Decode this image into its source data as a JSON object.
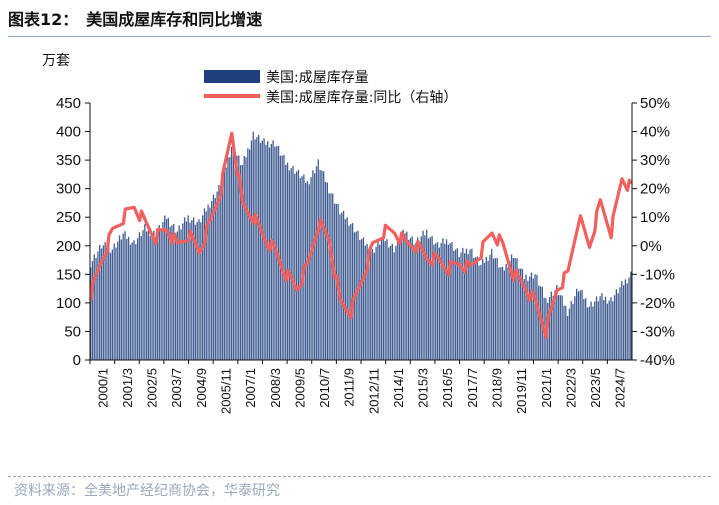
{
  "header": {
    "title": "图表12：　美国成屋库存和同比增速",
    "unit": "万套"
  },
  "footer": {
    "source": "资料来源：全美地产经纪商协会，华泰研究"
  },
  "colors": {
    "bar": "#1f3f7f",
    "line": "#f25f5c",
    "axis": "#111111"
  },
  "chart_data": {
    "type": "bar",
    "legend_position": "top-center",
    "grid": false,
    "series": [
      {
        "name": "美国:成屋库存量",
        "type": "bar",
        "axis": "left",
        "color": "#1f3f7f",
        "x": [
          "2000/1",
          "2000/7",
          "2001/1",
          "2001/7",
          "2002/1",
          "2002/7",
          "2003/1",
          "2003/7",
          "2004/1",
          "2004/7",
          "2005/1",
          "2005/7",
          "2006/1",
          "2006/7",
          "2007/1",
          "2007/7",
          "2008/1",
          "2008/7",
          "2009/1",
          "2009/7",
          "2010/1",
          "2010/7",
          "2011/1",
          "2011/7",
          "2012/1",
          "2012/7",
          "2013/1",
          "2013/7",
          "2014/1",
          "2014/7",
          "2015/1",
          "2015/7",
          "2016/1",
          "2016/7",
          "2017/1",
          "2017/7",
          "2018/1",
          "2018/7",
          "2019/1",
          "2019/7",
          "2020/1",
          "2020/7",
          "2021/1",
          "2021/7",
          "2022/1",
          "2022/7",
          "2023/1",
          "2023/7",
          "2024/1",
          "2024/7",
          "2024/12"
        ],
        "values": [
          170,
          200,
          195,
          220,
          205,
          230,
          220,
          250,
          225,
          250,
          240,
          275,
          305,
          375,
          340,
          395,
          380,
          380,
          345,
          330,
          310,
          345,
          300,
          260,
          240,
          210,
          190,
          215,
          195,
          225,
          205,
          225,
          200,
          210,
          185,
          195,
          165,
          190,
          155,
          185,
          145,
          150,
          105,
          125,
          85,
          125,
          95,
          110,
          105,
          130,
          150
        ]
      },
      {
        "name": "美国:成屋库存量:同比（右轴）",
        "type": "line",
        "axis": "right",
        "color": "#f25f5c",
        "x": [
          "2000/1",
          "2000/7",
          "2001/1",
          "2001/7",
          "2002/1",
          "2002/7",
          "2003/1",
          "2003/7",
          "2004/1",
          "2004/7",
          "2005/1",
          "2005/7",
          "2006/1",
          "2006/7",
          "2007/1",
          "2007/7",
          "2008/1",
          "2008/7",
          "2009/1",
          "2009/7",
          "2010/1",
          "2010/7",
          "2011/1",
          "2011/7",
          "2012/1",
          "2012/7",
          "2013/1",
          "2013/7",
          "2014/1",
          "2014/7",
          "2015/1",
          "2015/7",
          "2016/1",
          "2016/7",
          "2017/1",
          "2017/7",
          "2018/1",
          "2018/7",
          "2019/1",
          "2019/7",
          "2020/1",
          "2020/7",
          "2021/1",
          "2021/7",
          "2022/1",
          "2022/7",
          "2023/1",
          "2023/7",
          "2024/1",
          "2024/7",
          "2024/12"
        ],
        "values": [
          -17,
          -5,
          5,
          10,
          14,
          8,
          3,
          6,
          0,
          4,
          -2,
          8,
          20,
          40,
          14,
          10,
          3,
          -2,
          -10,
          -15,
          -7,
          8,
          2,
          -20,
          -23,
          -12,
          0,
          5,
          5,
          1,
          0,
          -4,
          -5,
          -8,
          -6,
          -8,
          -2,
          5,
          0,
          -10,
          -14,
          -20,
          -30,
          -15,
          -10,
          10,
          0,
          15,
          5,
          24,
          20
        ]
      }
    ],
    "y_left": {
      "ylim": [
        0,
        450
      ],
      "ticks": [
        0,
        50,
        100,
        150,
        200,
        250,
        300,
        350,
        400,
        450
      ]
    },
    "y_right": {
      "ylim": [
        -40,
        50
      ],
      "ticks": [
        "-40%",
        "-30%",
        "-20%",
        "-10%",
        "0%",
        "10%",
        "20%",
        "30%",
        "40%",
        "50%"
      ]
    },
    "x_tick_labels": [
      "2000/1",
      "2001/3",
      "2002/5",
      "2003/7",
      "2004/9",
      "2005/11",
      "2007/1",
      "2008/3",
      "2009/5",
      "2010/7",
      "2011/9",
      "2012/11",
      "2014/1",
      "2015/3",
      "2016/5",
      "2017/7",
      "2018/9",
      "2019/11",
      "2021/1",
      "2022/3",
      "2023/5",
      "2024/7"
    ]
  }
}
